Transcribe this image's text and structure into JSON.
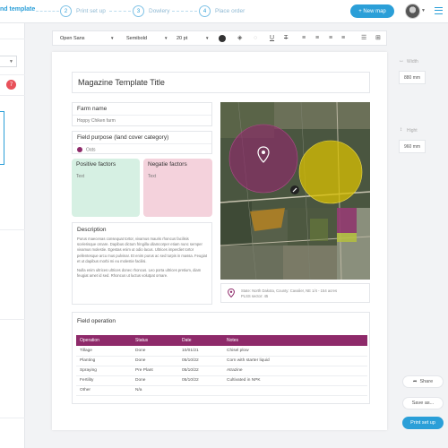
{
  "header": {
    "brand": "nd template",
    "steps": [
      {
        "num": "2",
        "label": "Print set up"
      },
      {
        "num": "3",
        "label": "Dowlery"
      },
      {
        "num": "4",
        "label": "Place order"
      }
    ],
    "new_map_label": "+ New map"
  },
  "sidebar": {
    "badge": "7"
  },
  "toolbar": {
    "font_family": "Open Sans",
    "font_weight": "Semibold",
    "font_size": "20 pt"
  },
  "right_panel": {
    "width_label": "Width",
    "width_value": "880 mm",
    "height_label": "Hight",
    "height_value": "960 mm",
    "share_label": "Share",
    "save_as_label": "Save as...",
    "print_setup_label": "Print set up"
  },
  "page": {
    "title": "Magazine Template Title",
    "farm_name": {
      "title": "Farm name",
      "value": "Hoppy Chiken farm"
    },
    "field_purpose": {
      "title": "Field purpose (land cover category)",
      "value": "Oats",
      "color": "#8e2a6a"
    },
    "positive": {
      "title": "Positive factors",
      "text": "Text"
    },
    "negative": {
      "title": "Negatie factors",
      "text": "Text"
    },
    "description": {
      "title": "Description",
      "para1": "Purus maecenas consequat tortor, vivamus mauris rhoncus facilisis scelerisque ornare. Dapibus dictum fringilla ullamcorper etiam nunc semper vivamus molestie. Egestas enim ut odio lacus. Ultrices imperdiet tortor pellentesque arcu mus pulvinar. Et enim purus ac sed turpis in massa. Feugiat et ut dapibus morbi mi eu molestie facilisi.",
      "para2": "Nulla enim ultrices ultrices donec rhoncus. Leo porta ultrices pretium, diam feugiat amet id sed. Rhoncus ut luctus volutpat ornare."
    },
    "location": {
      "line1": "State: North Dakota, County: Cavalier, NE 1/4 - 154 acres",
      "line2": "PLSS sector: 45"
    },
    "operations": {
      "title": "Field operation",
      "columns": [
        "Operation",
        "Status",
        "Date",
        "Notes"
      ],
      "rows": [
        [
          "Tillage",
          "Done",
          "10/01/21",
          "Chisel plow"
        ],
        [
          "Planting",
          "Done",
          "05/10/22",
          "Corn with starter liquid"
        ],
        [
          "Spraying",
          "Pre Plant",
          "05/10/22",
          "Atrazine"
        ],
        [
          "Fertility",
          "Done",
          "05/10/22",
          "Cultivated in NPK"
        ],
        [
          "Other",
          "N/a",
          "",
          ""
        ]
      ]
    }
  }
}
